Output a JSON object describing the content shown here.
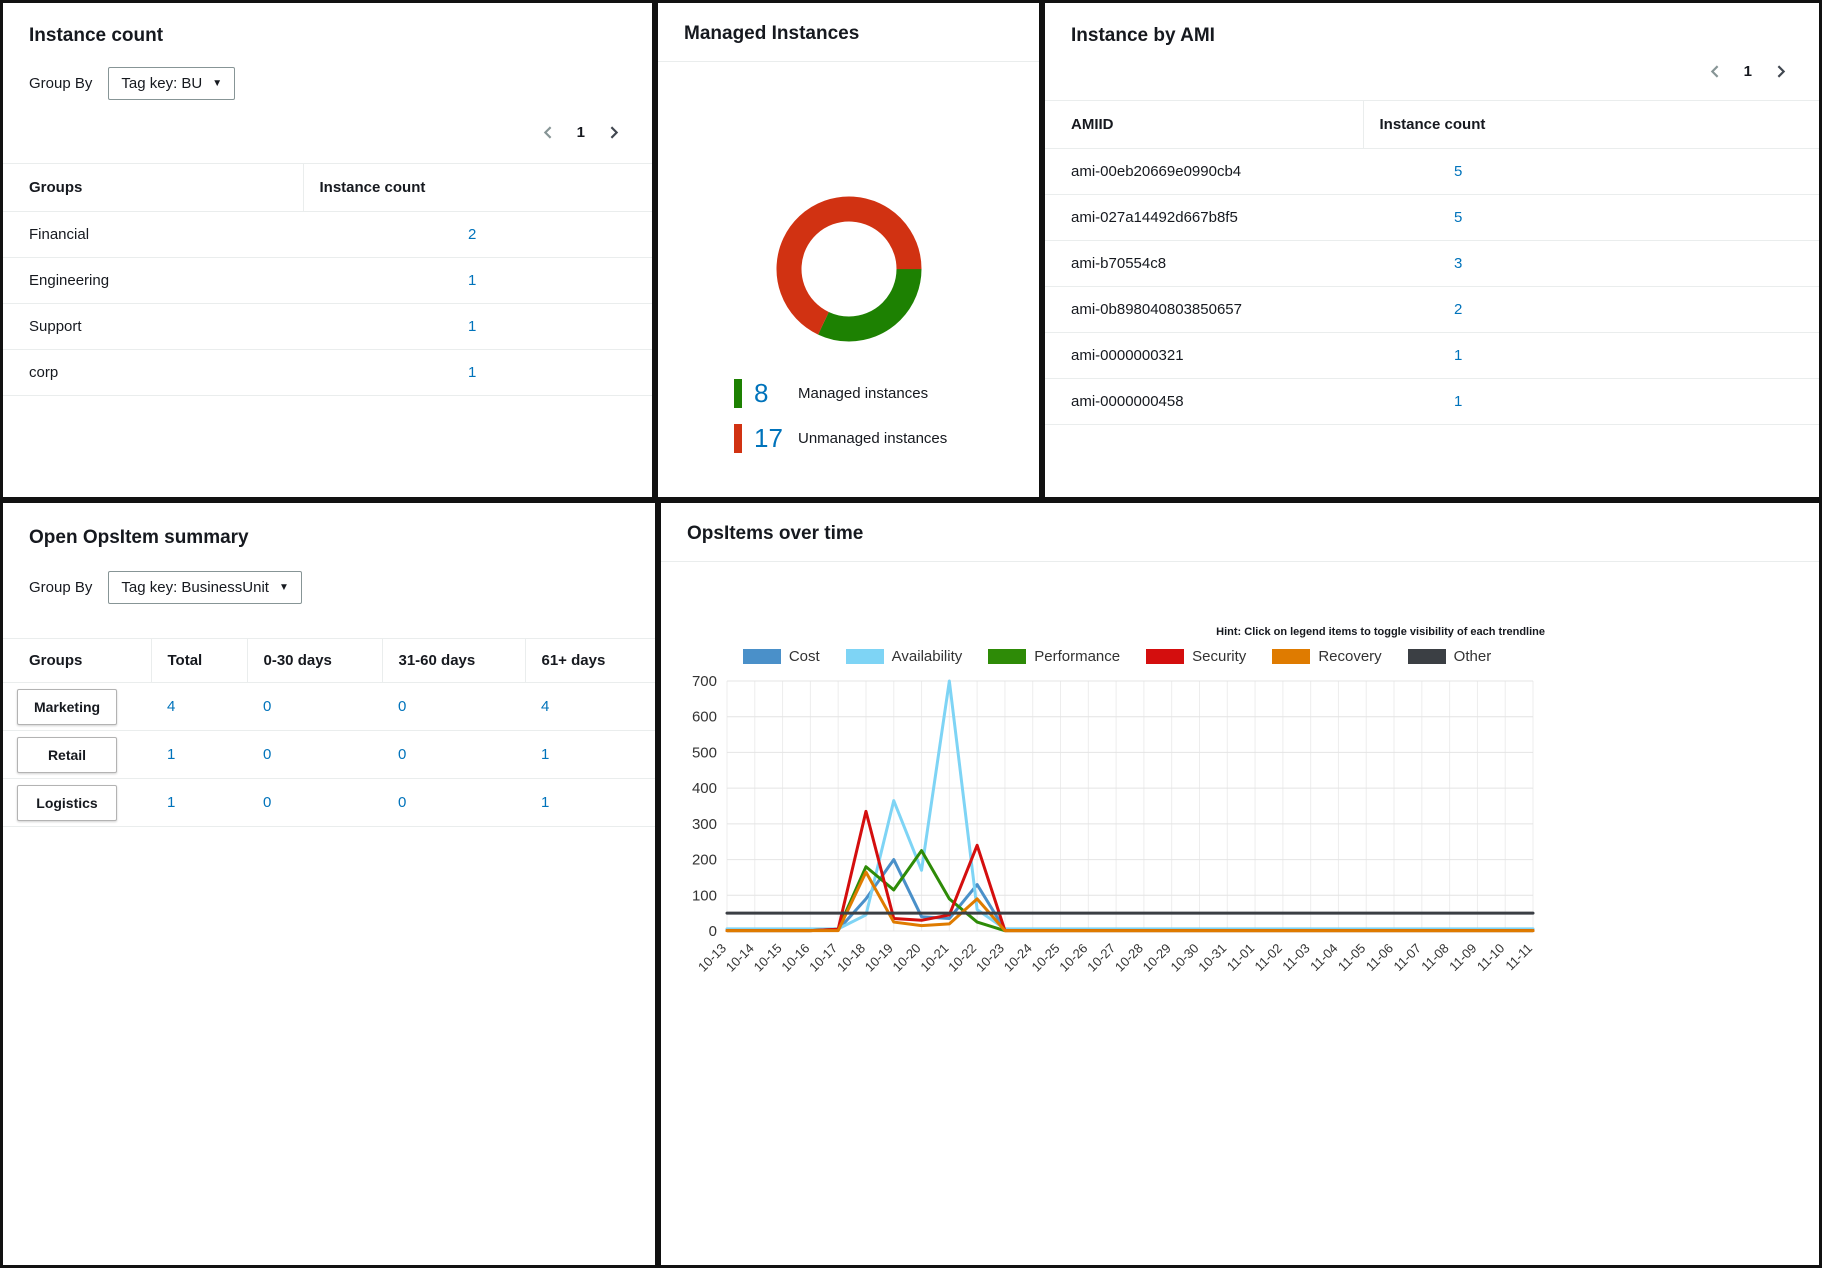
{
  "colors": {
    "link": "#0073bb",
    "text": "#16191f",
    "divider": "#eaeded"
  },
  "instance_count_card": {
    "title": "Instance count",
    "group_by_label": "Group By",
    "group_by_value": "Tag key: BU",
    "page": "1",
    "table": {
      "columns": [
        "Groups",
        "Instance count"
      ],
      "rows": [
        [
          "Financial",
          "2"
        ],
        [
          "Engineering",
          "1"
        ],
        [
          "Support",
          "1"
        ],
        [
          "corp",
          "1"
        ]
      ]
    }
  },
  "managed_instances_card": {
    "title": "Managed Instances",
    "legend": [
      {
        "value": "8",
        "label": "Managed instances",
        "color": "#1d8102"
      },
      {
        "value": "17",
        "label": "Unmanaged instances",
        "color": "#d13212"
      }
    ]
  },
  "instance_by_ami_card": {
    "title": "Instance by AMI",
    "page": "1",
    "table": {
      "columns": [
        "AMIID",
        "Instance count"
      ],
      "rows": [
        [
          "ami-00eb20669e0990cb4",
          "5"
        ],
        [
          "ami-027a14492d667b8f5",
          "5"
        ],
        [
          "ami-b70554c8",
          "3"
        ],
        [
          "ami-0b898040803850657",
          "2"
        ],
        [
          "ami-0000000321",
          "1"
        ],
        [
          "ami-0000000458",
          "1"
        ]
      ]
    }
  },
  "opsitem_summary_card": {
    "title": "Open OpsItem summary",
    "group_by_label": "Group By",
    "group_by_value": "Tag key: BusinessUnit",
    "table": {
      "columns": [
        "Groups",
        "Total",
        "0-30 days",
        "31-60 days",
        "61+ days"
      ],
      "rows": [
        [
          "Marketing",
          "4",
          "0",
          "0",
          "4"
        ],
        [
          "Retail",
          "1",
          "0",
          "0",
          "1"
        ],
        [
          "Logistics",
          "1",
          "0",
          "0",
          "1"
        ]
      ]
    }
  },
  "opsitems_over_time_card": {
    "title": "OpsItems over time",
    "hint": "Hint: Click on legend items to toggle visibility of each trendline"
  },
  "chart_data": [
    {
      "type": "pie",
      "donut": true,
      "title": "Managed Instances",
      "labels": [
        "Managed instances",
        "Unmanaged instances"
      ],
      "values": [
        8,
        17
      ],
      "colors": [
        "#1d8102",
        "#d13212"
      ]
    },
    {
      "type": "line",
      "title": "OpsItems over time",
      "x": [
        "10-13",
        "10-14",
        "10-15",
        "10-16",
        "10-17",
        "10-18",
        "10-19",
        "10-20",
        "10-21",
        "10-22",
        "10-23",
        "10-24",
        "10-25",
        "10-26",
        "10-27",
        "10-28",
        "10-29",
        "10-30",
        "10-31",
        "11-01",
        "11-02",
        "11-03",
        "11-04",
        "11-05",
        "11-06",
        "11-07",
        "11-08",
        "11-09",
        "11-10",
        "11-11"
      ],
      "ylim": [
        0,
        700
      ],
      "yticks": [
        0,
        100,
        200,
        300,
        400,
        500,
        600,
        700
      ],
      "grid": true,
      "legend_position": "top",
      "series": [
        {
          "name": "Cost",
          "color": "#4a90c9",
          "values": [
            3,
            3,
            3,
            3,
            3,
            90,
            200,
            40,
            35,
            130,
            3,
            3,
            3,
            3,
            3,
            3,
            3,
            3,
            3,
            3,
            3,
            3,
            3,
            3,
            3,
            3,
            3,
            3,
            3,
            3
          ]
        },
        {
          "name": "Availability",
          "color": "#7ed4f5",
          "values": [
            6,
            6,
            6,
            6,
            6,
            45,
            365,
            170,
            700,
            60,
            6,
            6,
            6,
            6,
            6,
            6,
            6,
            6,
            6,
            6,
            6,
            6,
            6,
            6,
            6,
            6,
            6,
            6,
            6,
            6
          ]
        },
        {
          "name": "Performance",
          "color": "#2e8b07",
          "values": [
            1,
            1,
            1,
            1,
            5,
            180,
            115,
            225,
            90,
            25,
            1,
            1,
            1,
            1,
            1,
            1,
            1,
            1,
            1,
            1,
            1,
            1,
            1,
            1,
            1,
            1,
            1,
            1,
            1,
            1
          ]
        },
        {
          "name": "Security",
          "color": "#d40e0e",
          "values": [
            1,
            1,
            1,
            1,
            5,
            335,
            35,
            30,
            45,
            240,
            1,
            1,
            1,
            1,
            1,
            1,
            1,
            1,
            1,
            1,
            1,
            1,
            1,
            1,
            1,
            1,
            1,
            1,
            1,
            1
          ]
        },
        {
          "name": "Recovery",
          "color": "#df7b00",
          "values": [
            1,
            1,
            1,
            1,
            1,
            165,
            25,
            15,
            20,
            90,
            1,
            1,
            1,
            1,
            1,
            1,
            1,
            1,
            1,
            1,
            1,
            1,
            1,
            1,
            1,
            1,
            1,
            1,
            1,
            1
          ]
        },
        {
          "name": "Other",
          "color": "#3b3f44",
          "values": [
            50,
            50,
            50,
            50,
            50,
            50,
            50,
            50,
            50,
            50,
            50,
            50,
            50,
            50,
            50,
            50,
            50,
            50,
            50,
            50,
            50,
            50,
            50,
            50,
            50,
            50,
            50,
            50,
            50,
            50
          ]
        }
      ]
    }
  ]
}
